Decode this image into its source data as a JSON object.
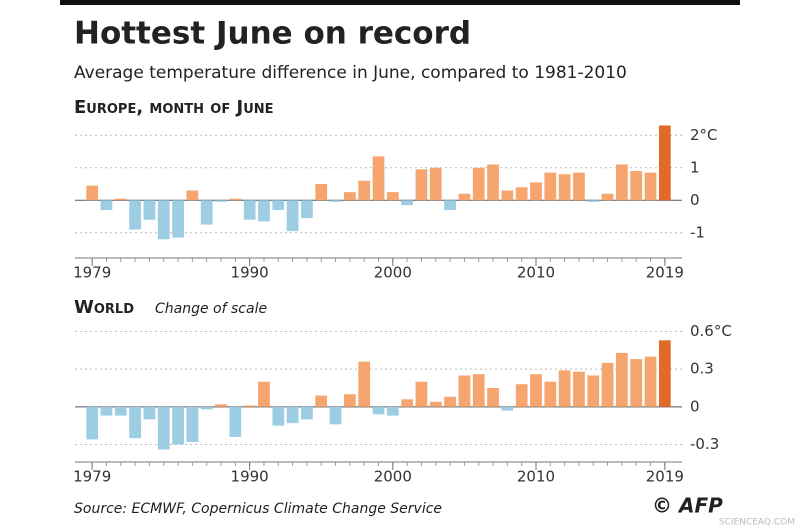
{
  "header": {
    "title": "Hottest June on record",
    "subtitle": "Average temperature difference in June, compared to 1981-2010"
  },
  "chart_data": [
    {
      "type": "bar",
      "title": "Europe, month of June",
      "x": [
        1979,
        1980,
        1981,
        1982,
        1983,
        1984,
        1985,
        1986,
        1987,
        1988,
        1989,
        1990,
        1991,
        1992,
        1993,
        1994,
        1995,
        1996,
        1997,
        1998,
        1999,
        2000,
        2001,
        2002,
        2003,
        2004,
        2005,
        2006,
        2007,
        2008,
        2009,
        2010,
        2011,
        2012,
        2013,
        2014,
        2015,
        2016,
        2017,
        2018,
        2019
      ],
      "values": [
        0.45,
        -0.3,
        0.05,
        -0.9,
        -0.6,
        -1.2,
        -1.15,
        0.3,
        -0.75,
        -0.05,
        0.05,
        -0.6,
        -0.65,
        -0.3,
        -0.95,
        -0.55,
        0.5,
        -0.05,
        0.25,
        0.6,
        1.35,
        0.25,
        -0.15,
        0.95,
        1.0,
        -0.3,
        0.2,
        1.0,
        1.1,
        0.3,
        0.4,
        0.55,
        0.85,
        0.8,
        0.85,
        -0.05,
        0.2,
        1.1,
        0.9,
        0.85,
        2.3
      ],
      "color_positive": "#f5a56d",
      "color_negative": "#9dcde3",
      "color_latest": "#e2692a",
      "xlim": [
        1978.5,
        2019.5
      ],
      "xticks": [
        1979,
        1990,
        2000,
        2010,
        2019
      ],
      "ylim": [
        -1.5,
        2.5
      ],
      "yticks": [
        {
          "value": 2,
          "label": "2°C"
        },
        1,
        0,
        -1
      ],
      "grid": true
    },
    {
      "type": "bar",
      "title": "World",
      "note": "Change of scale",
      "x": [
        1979,
        1980,
        1981,
        1982,
        1983,
        1984,
        1985,
        1986,
        1987,
        1988,
        1989,
        1990,
        1991,
        1992,
        1993,
        1994,
        1995,
        1996,
        1997,
        1998,
        1999,
        2000,
        2001,
        2002,
        2003,
        2004,
        2005,
        2006,
        2007,
        2008,
        2009,
        2010,
        2011,
        2012,
        2013,
        2014,
        2015,
        2016,
        2017,
        2018,
        2019
      ],
      "values": [
        -0.26,
        -0.07,
        -0.07,
        -0.25,
        -0.1,
        -0.34,
        -0.3,
        -0.28,
        -0.02,
        0.02,
        -0.24,
        0.01,
        0.2,
        -0.15,
        -0.13,
        -0.1,
        0.09,
        -0.14,
        0.1,
        0.36,
        -0.06,
        -0.07,
        0.06,
        0.2,
        0.04,
        0.08,
        0.25,
        0.26,
        0.15,
        -0.03,
        0.18,
        0.26,
        0.2,
        0.29,
        0.28,
        0.25,
        0.35,
        0.43,
        0.38,
        0.4,
        0.53
      ],
      "color_positive": "#f5a56d",
      "color_negative": "#9dcde3",
      "color_latest": "#e2692a",
      "xlim": [
        1978.5,
        2019.5
      ],
      "xticks": [
        1979,
        1990,
        2000,
        2010,
        2019
      ],
      "ylim": [
        -0.4,
        0.7
      ],
      "yticks": [
        {
          "value": 0.6,
          "label": "0.6°C"
        },
        0.3,
        0,
        -0.3
      ],
      "grid": true
    }
  ],
  "footer": {
    "source": "Source: ECMWF, Copernicus Climate Change Service",
    "credit": "© AFP",
    "watermark": "SCIENCEAQ.COM"
  }
}
